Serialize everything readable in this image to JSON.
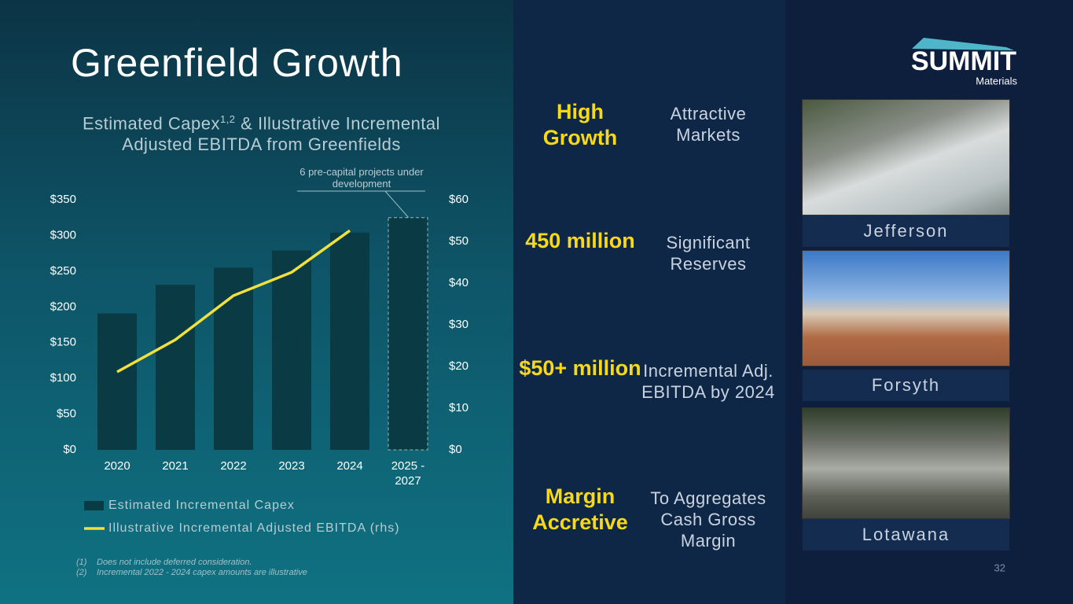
{
  "slide_title": "Greenfield Growth",
  "logo": {
    "name": "SUMMIT",
    "sub": "Materials"
  },
  "page_number": "32",
  "highlights": [
    {
      "stat": "High Growth",
      "text": "Attractive Markets"
    },
    {
      "stat": "450 million",
      "text": "Significant Reserves"
    },
    {
      "stat": "$50+ million",
      "text": "Incremental Adj. EBITDA by 2024"
    },
    {
      "stat": "Margin Accretive",
      "text": "To Aggregates Cash Gross Margin"
    }
  ],
  "photos": [
    "Jefferson",
    "Forsyth",
    "Lotawana"
  ],
  "footnotes": [
    {
      "mark": "(1)",
      "text": "Does not include deferred consideration."
    },
    {
      "mark": "(2)",
      "text": "Incremental 2022 - 2024 capex amounts are illustrative"
    }
  ],
  "chart_data": {
    "type": "combo",
    "title": "Estimated Capex",
    "title_sup": "1,2",
    "title_rest": "& Illustrative Incremental Adjusted EBITDA from Greenfields",
    "annotation": "6 pre-capital projects under development",
    "categories": [
      "2020",
      "2021",
      "2022",
      "2023",
      "2024",
      "2025 - 2027"
    ],
    "series": [
      {
        "name": "Estimated Incremental Capex",
        "kind": "bar",
        "color": "#0a3a44",
        "values": [
          191,
          231,
          255,
          279,
          304,
          325
        ]
      },
      {
        "name": "Illustrative Incremental Adjusted EBITDA (rhs)",
        "kind": "line",
        "axis": "y2",
        "color": "#f2e03c",
        "values": [
          18.7,
          26.4,
          37,
          42.6,
          52.6,
          null
        ]
      }
    ],
    "ylim": [
      0,
      350
    ],
    "yticks": [
      {
        "value": 0,
        "label": "$0"
      },
      {
        "value": 50,
        "label": "$50"
      },
      {
        "value": 100,
        "label": "$100"
      },
      {
        "value": 150,
        "label": "$150"
      },
      {
        "value": 200,
        "label": "$200"
      },
      {
        "value": 250,
        "label": "$250"
      },
      {
        "value": 300,
        "label": "$300"
      },
      {
        "value": 350,
        "label": "$350"
      }
    ],
    "y2lim": [
      0,
      60
    ],
    "y2ticks": [
      {
        "value": 0,
        "label": "$0"
      },
      {
        "value": 10,
        "label": "$10"
      },
      {
        "value": 20,
        "label": "$20"
      },
      {
        "value": 30,
        "label": "$30"
      },
      {
        "value": 40,
        "label": "$40"
      },
      {
        "value": 50,
        "label": "$50"
      },
      {
        "value": 60,
        "label": "$60"
      }
    ]
  }
}
